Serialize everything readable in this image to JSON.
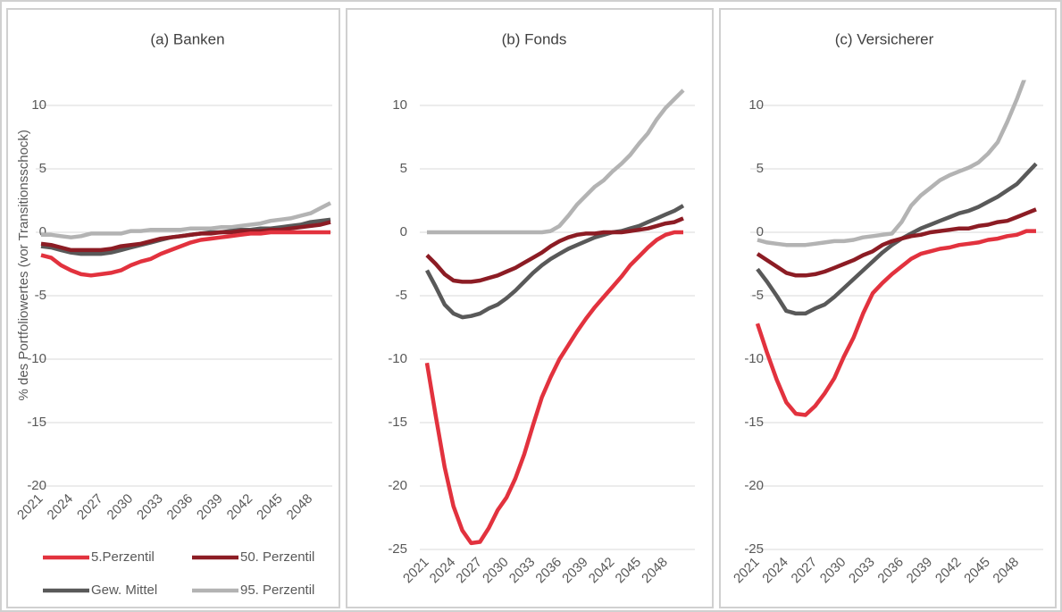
{
  "chart_data": [
    {
      "type": "line",
      "title": "(a) Banken",
      "y_label": "% des Portfoliowertes (vor Transitionsschock)",
      "categories": [
        "2021",
        null,
        null,
        "2024",
        null,
        null,
        "2027",
        null,
        null,
        "2030",
        null,
        null,
        "2033",
        null,
        null,
        "2036",
        null,
        null,
        "2039",
        null,
        null,
        "2042",
        null,
        null,
        "2045",
        null,
        null,
        "2048",
        null,
        null
      ],
      "ylim": [
        -20,
        12
      ],
      "yticks": [
        10,
        5,
        0,
        -5,
        -10,
        -15,
        -20
      ],
      "grid": true,
      "series": [
        {
          "name": "5.Perzentil",
          "color": "#e2323e",
          "values": [
            -1.8,
            -2.0,
            -2.6,
            -3.0,
            -3.3,
            -3.4,
            -3.3,
            -3.2,
            -3.0,
            -2.6,
            -2.3,
            -2.1,
            -1.7,
            -1.4,
            -1.1,
            -0.8,
            -0.6,
            -0.5,
            -0.4,
            -0.3,
            -0.2,
            -0.1,
            -0.1,
            0,
            0,
            0,
            0,
            0,
            0,
            0
          ]
        },
        {
          "name": "50. Perzentil",
          "color": "#8c1c24",
          "values": [
            -0.9,
            -1.0,
            -1.2,
            -1.4,
            -1.4,
            -1.4,
            -1.4,
            -1.3,
            -1.1,
            -1.0,
            -0.9,
            -0.7,
            -0.5,
            -0.4,
            -0.3,
            -0.2,
            -0.1,
            -0.1,
            0,
            0,
            0.1,
            0.1,
            0.1,
            0.2,
            0.2,
            0.3,
            0.4,
            0.5,
            0.6,
            0.8
          ]
        },
        {
          "name": "Gew. Mittel",
          "color": "#595959",
          "values": [
            -1.1,
            -1.2,
            -1.4,
            -1.6,
            -1.7,
            -1.7,
            -1.7,
            -1.6,
            -1.4,
            -1.2,
            -1.0,
            -0.8,
            -0.6,
            -0.4,
            -0.3,
            -0.2,
            -0.1,
            0,
            0,
            0.1,
            0.2,
            0.2,
            0.3,
            0.3,
            0.4,
            0.5,
            0.6,
            0.8,
            0.9,
            1.0
          ]
        },
        {
          "name": "95. Perzentil",
          "color": "#b3b3b3",
          "values": [
            -0.2,
            -0.2,
            -0.3,
            -0.4,
            -0.3,
            -0.1,
            -0.1,
            -0.1,
            -0.1,
            0.1,
            0.1,
            0.2,
            0.2,
            0.2,
            0.2,
            0.3,
            0.3,
            0.3,
            0.4,
            0.4,
            0.5,
            0.6,
            0.7,
            0.9,
            1.0,
            1.1,
            1.3,
            1.5,
            1.9,
            2.3
          ]
        }
      ]
    },
    {
      "type": "line",
      "title": "(b) Fonds",
      "categories": [
        "2021",
        null,
        null,
        "2024",
        null,
        null,
        "2027",
        null,
        null,
        "2030",
        null,
        null,
        "2033",
        null,
        null,
        "2036",
        null,
        null,
        "2039",
        null,
        null,
        "2042",
        null,
        null,
        "2045",
        null,
        null,
        "2048",
        null,
        null
      ],
      "ylim": [
        -25,
        12
      ],
      "yticks": [
        10,
        5,
        0,
        -5,
        -10,
        -15,
        -20,
        -25
      ],
      "grid": true,
      "series": [
        {
          "color": "#e2323e",
          "values": [
            -10.3,
            -14.5,
            -18.5,
            -21.6,
            -23.5,
            -24.5,
            -24.4,
            -23.3,
            -21.9,
            -20.9,
            -19.4,
            -17.5,
            -15.2,
            -13.0,
            -11.4,
            -10.0,
            -8.9,
            -7.8,
            -6.8,
            -5.9,
            -5.1,
            -4.3,
            -3.5,
            -2.6,
            -1.9,
            -1.2,
            -0.6,
            -0.2,
            0,
            0
          ]
        },
        {
          "color": "#8c1c24",
          "values": [
            -1.8,
            -2.5,
            -3.3,
            -3.8,
            -3.9,
            -3.9,
            -3.8,
            -3.6,
            -3.4,
            -3.1,
            -2.8,
            -2.4,
            -2.0,
            -1.6,
            -1.1,
            -0.7,
            -0.4,
            -0.2,
            -0.1,
            -0.1,
            0,
            0,
            0,
            0.1,
            0.2,
            0.3,
            0.5,
            0.7,
            0.8,
            1.1
          ]
        },
        {
          "color": "#595959",
          "values": [
            -3.0,
            -4.3,
            -5.7,
            -6.4,
            -6.7,
            -6.6,
            -6.4,
            -6.0,
            -5.7,
            -5.2,
            -4.6,
            -3.9,
            -3.2,
            -2.6,
            -2.1,
            -1.7,
            -1.3,
            -1.0,
            -0.7,
            -0.4,
            -0.2,
            0,
            0.1,
            0.3,
            0.5,
            0.8,
            1.1,
            1.4,
            1.7,
            2.1
          ]
        },
        {
          "color": "#b3b3b3",
          "values": [
            0,
            0,
            0,
            0,
            0,
            0,
            0,
            0,
            0,
            0,
            0,
            0,
            0,
            0,
            0.1,
            0.5,
            1.3,
            2.2,
            2.9,
            3.6,
            4.1,
            4.8,
            5.4,
            6.1,
            7.0,
            7.8,
            8.9,
            9.8,
            10.5,
            11.2
          ]
        }
      ]
    },
    {
      "type": "line",
      "title": "(c) Versicherer",
      "categories": [
        "2021",
        null,
        null,
        "2024",
        null,
        null,
        "2027",
        null,
        null,
        "2030",
        null,
        null,
        "2033",
        null,
        null,
        "2036",
        null,
        null,
        "2039",
        null,
        null,
        "2042",
        null,
        null,
        "2045",
        null,
        null,
        "2048",
        null,
        null
      ],
      "ylim": [
        -25,
        12
      ],
      "yticks": [
        10,
        5,
        0,
        -5,
        -10,
        -15,
        -20,
        -25
      ],
      "grid": true,
      "series": [
        {
          "color": "#e2323e",
          "values": [
            -7.2,
            -9.5,
            -11.6,
            -13.4,
            -14.3,
            -14.4,
            -13.7,
            -12.7,
            -11.5,
            -9.8,
            -8.3,
            -6.4,
            -4.8,
            -4.0,
            -3.3,
            -2.7,
            -2.1,
            -1.7,
            -1.5,
            -1.3,
            -1.2,
            -1.0,
            -0.9,
            -0.8,
            -0.6,
            -0.5,
            -0.3,
            -0.2,
            0.1,
            0.1
          ]
        },
        {
          "color": "#8c1c24",
          "values": [
            -1.7,
            -2.2,
            -2.7,
            -3.2,
            -3.4,
            -3.4,
            -3.3,
            -3.1,
            -2.8,
            -2.5,
            -2.2,
            -1.8,
            -1.5,
            -1.0,
            -0.7,
            -0.5,
            -0.3,
            -0.2,
            0,
            0.1,
            0.2,
            0.3,
            0.3,
            0.5,
            0.6,
            0.8,
            0.9,
            1.2,
            1.5,
            1.8
          ]
        },
        {
          "color": "#595959",
          "values": [
            -2.9,
            -3.9,
            -5.0,
            -6.2,
            -6.4,
            -6.4,
            -6.0,
            -5.7,
            -5.1,
            -4.4,
            -3.7,
            -3.0,
            -2.3,
            -1.6,
            -1.0,
            -0.5,
            -0.1,
            0.3,
            0.6,
            0.9,
            1.2,
            1.5,
            1.7,
            2.0,
            2.4,
            2.8,
            3.3,
            3.8,
            4.6,
            5.4
          ]
        },
        {
          "color": "#b3b3b3",
          "values": [
            -0.6,
            -0.8,
            -0.9,
            -1.0,
            -1.0,
            -1.0,
            -0.9,
            -0.8,
            -0.7,
            -0.7,
            -0.6,
            -0.4,
            -0.3,
            -0.2,
            -0.1,
            0.8,
            2.1,
            2.9,
            3.5,
            4.1,
            4.5,
            4.8,
            5.1,
            5.5,
            6.2,
            7.1,
            8.7,
            10.5,
            12.5,
            14.5
          ]
        }
      ]
    }
  ]
}
